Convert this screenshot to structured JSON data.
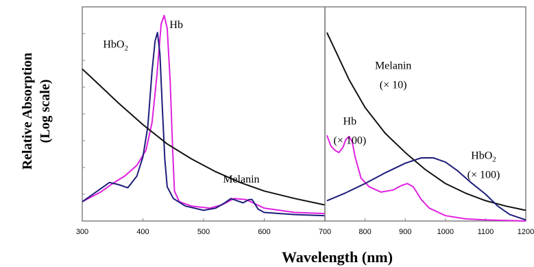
{
  "chart_data": {
    "type": "line",
    "xlabel": "Wavelength (nm)",
    "ylabel_lines": [
      "Relative Absorption",
      "(Log scale)"
    ],
    "y_scale": "log",
    "y_tick_labels": "none",
    "grid": false,
    "legend": "none (curves labeled inline)",
    "colors": {
      "Hb": "#e020e0",
      "HbO2": "#1c1c7a",
      "Melanin": "#111111",
      "frame": "#808080"
    },
    "panels": [
      {
        "xlim": [
          300,
          700
        ],
        "x_ticks": [
          300,
          400,
          500,
          600,
          700
        ],
        "ylim": [
          0,
          10
        ],
        "labels": [
          {
            "series": "HbO2",
            "text": "HbO",
            "sub": "2",
            "x": 355,
            "y": 8.1
          },
          {
            "series": "Hb",
            "text": "Hb",
            "x": 455,
            "y": 9.0
          },
          {
            "series": "Melanin",
            "text": "Melanin",
            "x": 562,
            "y": 1.8
          }
        ],
        "series": [
          {
            "name": "Hb",
            "color": "#e020e0",
            "points": [
              [
                300,
                0.9
              ],
              [
                330,
                1.35
              ],
              [
                350,
                1.75
              ],
              [
                370,
                2.1
              ],
              [
                390,
                2.6
              ],
              [
                405,
                3.3
              ],
              [
                415,
                4.6
              ],
              [
                423,
                6.8
              ],
              [
                430,
                9.2
              ],
              [
                435,
                9.6
              ],
              [
                440,
                9.0
              ],
              [
                445,
                6.5
              ],
              [
                449,
                3.3
              ],
              [
                452,
                1.4
              ],
              [
                460,
                0.9
              ],
              [
                480,
                0.7
              ],
              [
                510,
                0.6
              ],
              [
                530,
                0.75
              ],
              [
                550,
                1.05
              ],
              [
                570,
                1.0
              ],
              [
                585,
                0.8
              ],
              [
                600,
                0.6
              ],
              [
                650,
                0.4
              ],
              [
                700,
                0.35
              ]
            ]
          },
          {
            "name": "HbO2",
            "color": "#1c1c7a",
            "points": [
              [
                300,
                0.9
              ],
              [
                320,
                1.3
              ],
              [
                345,
                1.8
              ],
              [
                360,
                1.7
              ],
              [
                375,
                1.55
              ],
              [
                390,
                2.1
              ],
              [
                400,
                3.0
              ],
              [
                408,
                4.4
              ],
              [
                415,
                7.0
              ],
              [
                420,
                8.4
              ],
              [
                424,
                8.8
              ],
              [
                428,
                7.8
              ],
              [
                432,
                5.3
              ],
              [
                436,
                2.9
              ],
              [
                440,
                1.6
              ],
              [
                450,
                1.05
              ],
              [
                470,
                0.7
              ],
              [
                500,
                0.5
              ],
              [
                520,
                0.6
              ],
              [
                535,
                0.85
              ],
              [
                545,
                1.05
              ],
              [
                555,
                0.95
              ],
              [
                565,
                0.85
              ],
              [
                575,
                1.0
              ],
              [
                580,
                1.0
              ],
              [
                590,
                0.55
              ],
              [
                600,
                0.4
              ],
              [
                650,
                0.3
              ],
              [
                700,
                0.25
              ]
            ]
          },
          {
            "name": "Melanin",
            "color": "#111111",
            "points": [
              [
                300,
                7.1
              ],
              [
                330,
                6.3
              ],
              [
                360,
                5.5
              ],
              [
                400,
                4.5
              ],
              [
                440,
                3.6
              ],
              [
                480,
                2.9
              ],
              [
                520,
                2.3
              ],
              [
                560,
                1.8
              ],
              [
                600,
                1.4
              ],
              [
                650,
                1.05
              ],
              [
                700,
                0.75
              ]
            ]
          }
        ]
      },
      {
        "xlim": [
          700,
          1200
        ],
        "x_ticks": [
          700,
          800,
          900,
          1000,
          1100,
          1200
        ],
        "ylim": [
          0,
          10
        ],
        "labels": [
          {
            "series": "Melanin",
            "text": "Melanin",
            "x": 870,
            "y": 7.1
          },
          {
            "series": "Melanin",
            "text": "(× 10)",
            "x": 870,
            "y": 6.2
          },
          {
            "series": "Hb",
            "text": "Hb",
            "x": 762,
            "y": 4.5
          },
          {
            "series": "Hb",
            "text": "(× 100)",
            "x": 762,
            "y": 3.6
          },
          {
            "series": "HbO2",
            "text": "HbO",
            "sub": "2",
            "x": 1095,
            "y": 2.9
          },
          {
            "series": "HbO2",
            "text": "(× 100)",
            "x": 1095,
            "y": 2.0
          }
        ],
        "series": [
          {
            "name": "Melanin",
            "color": "#111111",
            "points": [
              [
                705,
                8.8
              ],
              [
                730,
                7.8
              ],
              [
                760,
                6.6
              ],
              [
                800,
                5.3
              ],
              [
                850,
                4.1
              ],
              [
                900,
                3.2
              ],
              [
                950,
                2.4
              ],
              [
                1000,
                1.75
              ],
              [
                1050,
                1.3
              ],
              [
                1100,
                0.95
              ],
              [
                1150,
                0.7
              ],
              [
                1200,
                0.5
              ]
            ]
          },
          {
            "name": "Hb",
            "color": "#e020e0",
            "points": [
              [
                705,
                4.0
              ],
              [
                715,
                3.5
              ],
              [
                725,
                3.3
              ],
              [
                735,
                3.2
              ],
              [
                745,
                3.45
              ],
              [
                752,
                3.8
              ],
              [
                760,
                3.95
              ],
              [
                768,
                3.7
              ],
              [
                775,
                3.0
              ],
              [
                790,
                2.0
              ],
              [
                810,
                1.6
              ],
              [
                840,
                1.35
              ],
              [
                870,
                1.45
              ],
              [
                890,
                1.65
              ],
              [
                905,
                1.75
              ],
              [
                920,
                1.6
              ],
              [
                940,
                1.0
              ],
              [
                960,
                0.6
              ],
              [
                1000,
                0.25
              ],
              [
                1050,
                0.1
              ],
              [
                1100,
                0.05
              ],
              [
                1200,
                0.0
              ]
            ]
          },
          {
            "name": "HbO2",
            "color": "#1c1c7a",
            "points": [
              [
                705,
                0.95
              ],
              [
                750,
                1.3
              ],
              [
                800,
                1.75
              ],
              [
                850,
                2.25
              ],
              [
                900,
                2.7
              ],
              [
                940,
                2.95
              ],
              [
                970,
                2.95
              ],
              [
                1000,
                2.75
              ],
              [
                1030,
                2.35
              ],
              [
                1060,
                1.85
              ],
              [
                1100,
                1.25
              ],
              [
                1130,
                0.7
              ],
              [
                1160,
                0.3
              ],
              [
                1200,
                0.05
              ]
            ]
          }
        ]
      }
    ]
  }
}
